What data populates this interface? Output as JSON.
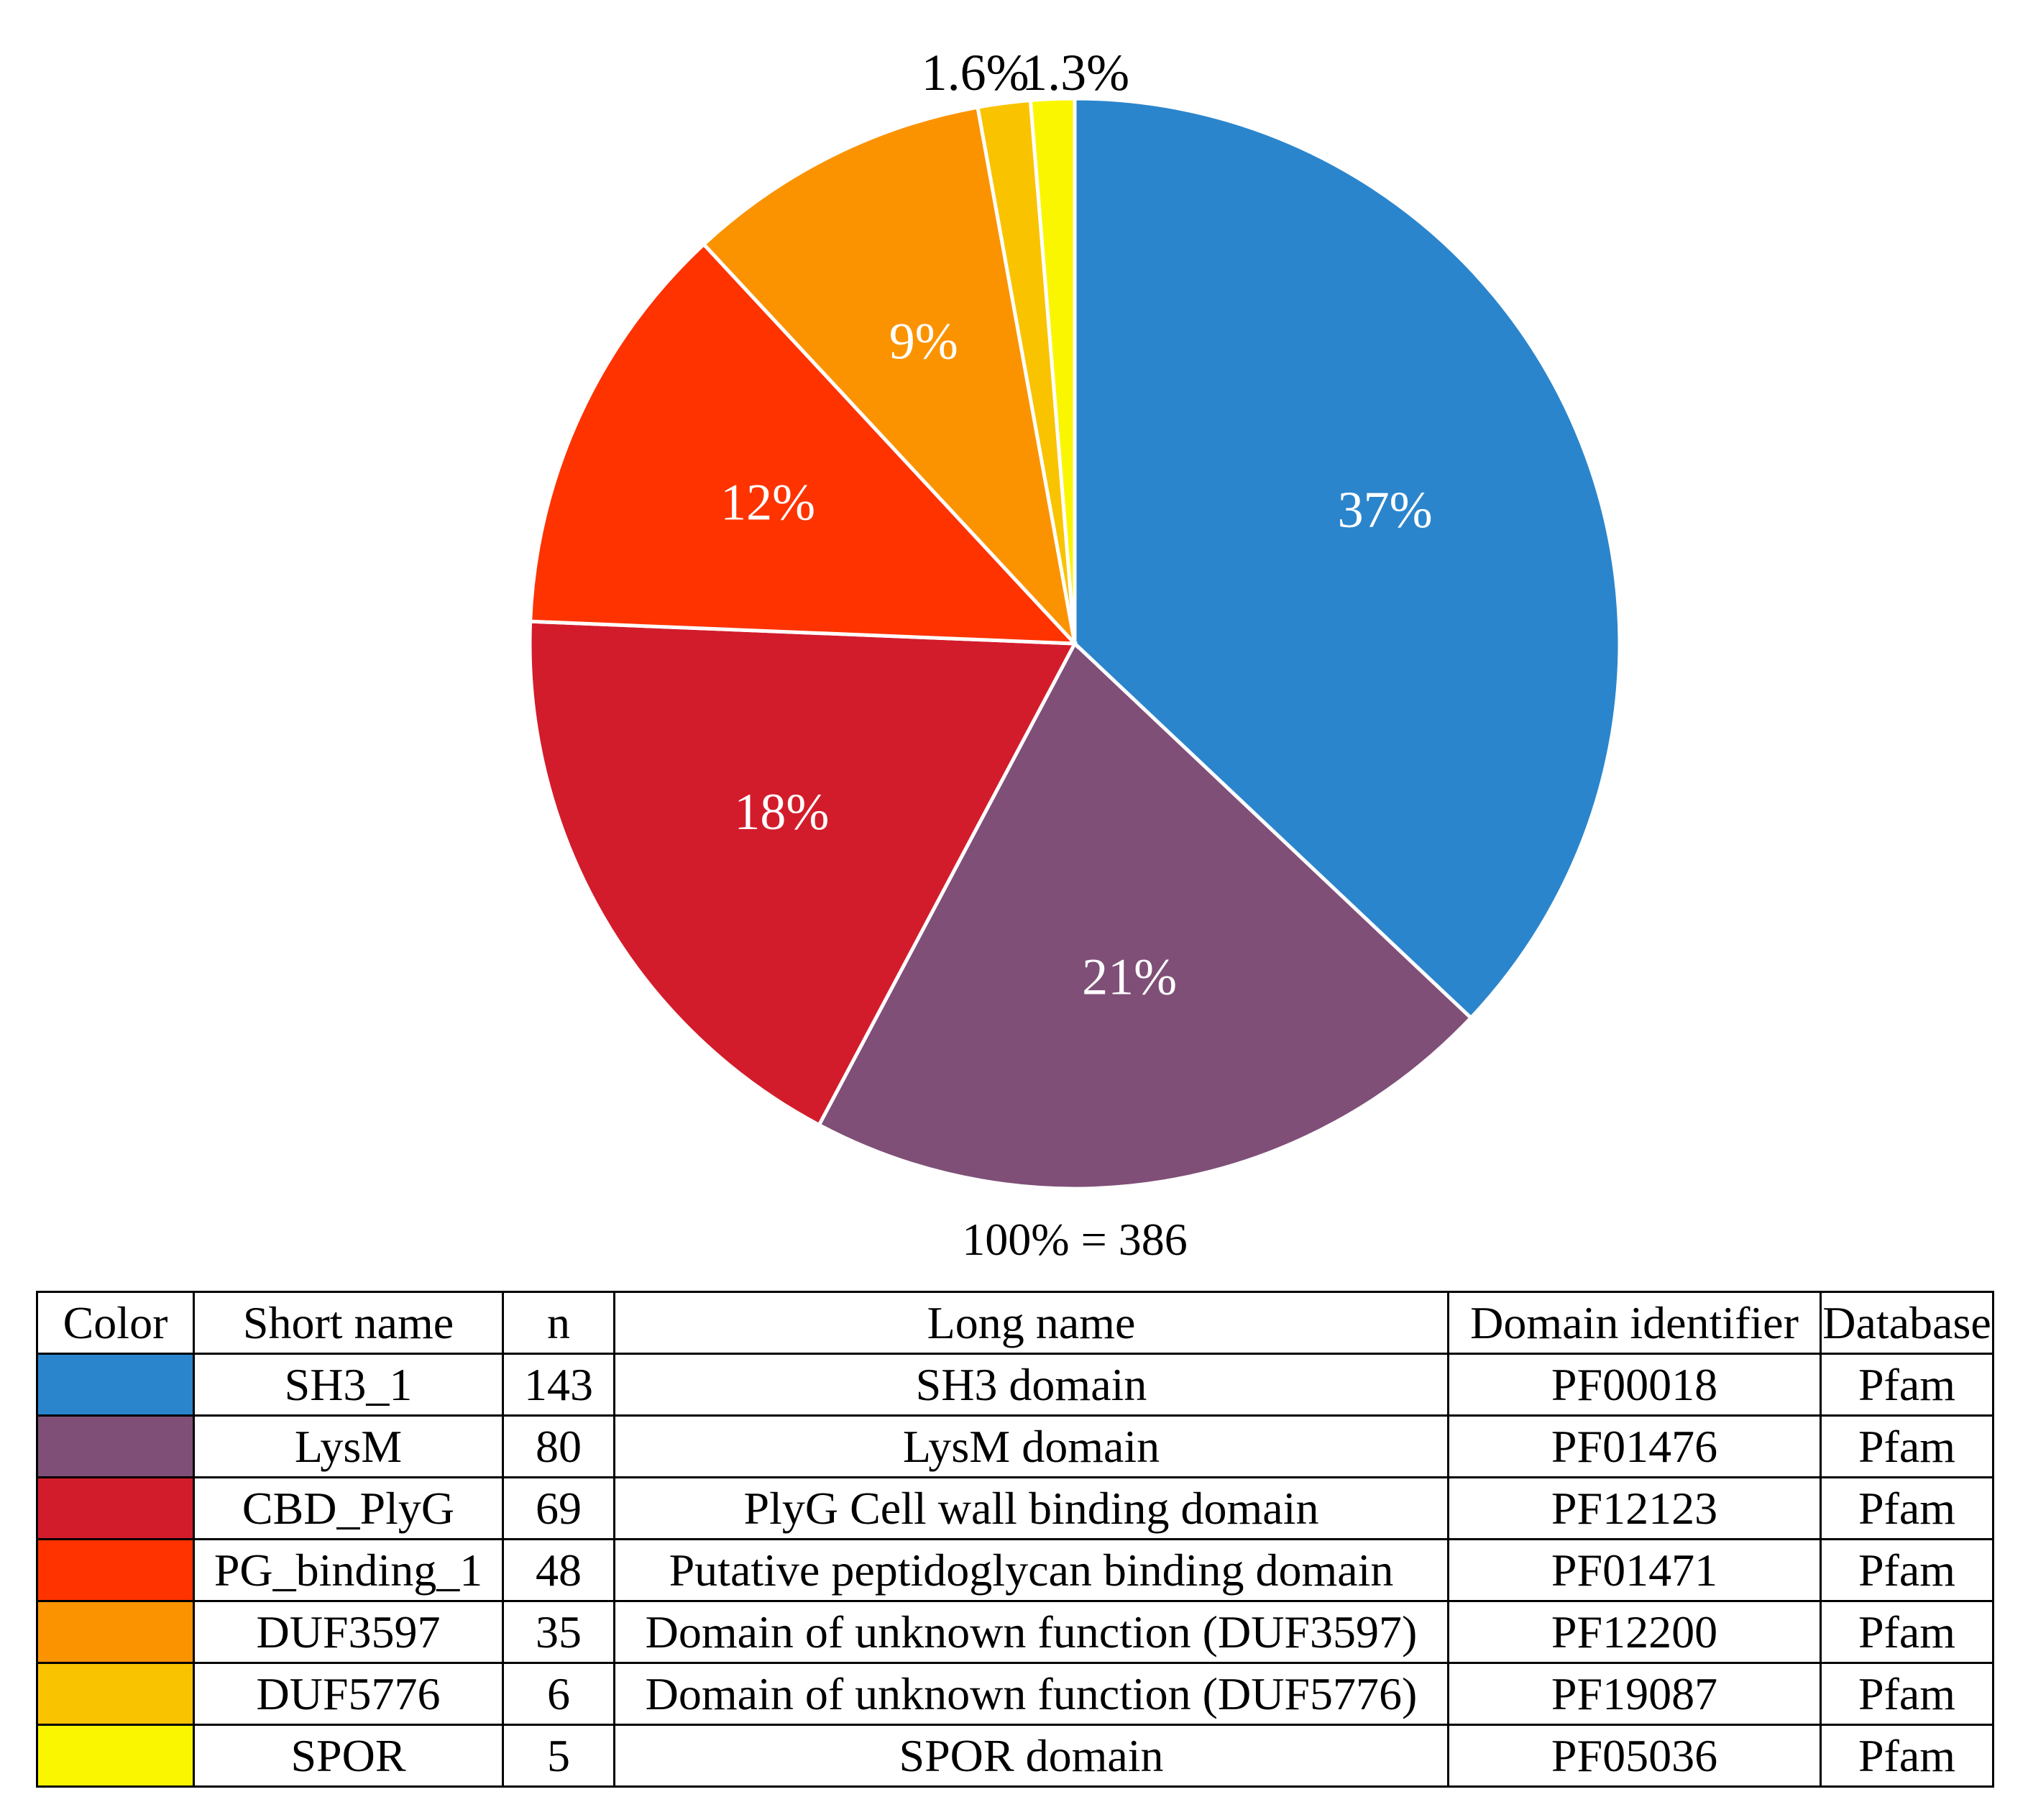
{
  "chart_data": {
    "type": "pie",
    "total_label": "100% = 386",
    "slices": [
      {
        "short_name": "SH3_1",
        "n": 143,
        "percent_label": "37%",
        "color": "#2B85CC"
      },
      {
        "short_name": "LysM",
        "n": 80,
        "percent_label": "21%",
        "color": "#7F4F77"
      },
      {
        "short_name": "CBD_PlyG",
        "n": 69,
        "percent_label": "18%",
        "color": "#D31C2B"
      },
      {
        "short_name": "PG_binding_1",
        "n": 48,
        "percent_label": "12%",
        "color": "#FE3300"
      },
      {
        "short_name": "DUF3597",
        "n": 35,
        "percent_label": "9%",
        "color": "#FB9300"
      },
      {
        "short_name": "DUF5776",
        "n": 6,
        "percent_label": "1.6%",
        "color": "#F9C300"
      },
      {
        "short_name": "SPOR",
        "n": 5,
        "percent_label": "1.3%",
        "color": "#FAF600"
      }
    ]
  },
  "legend_table": {
    "headers": [
      "Color",
      "Short name",
      "n",
      "Long name",
      "Domain identifier",
      "Database"
    ],
    "rows": [
      {
        "color": "#2B85CC",
        "short_name": "SH3_1",
        "n": "143",
        "long_name": "SH3 domain",
        "identifier": "PF00018",
        "database": "Pfam"
      },
      {
        "color": "#7F4F77",
        "short_name": "LysM",
        "n": "80",
        "long_name": "LysM domain",
        "identifier": "PF01476",
        "database": "Pfam"
      },
      {
        "color": "#D31C2B",
        "short_name": "CBD_PlyG",
        "n": "69",
        "long_name": "PlyG Cell wall binding domain",
        "identifier": "PF12123",
        "database": "Pfam"
      },
      {
        "color": "#FE3300",
        "short_name": "PG_binding_1",
        "n": "48",
        "long_name": "Putative peptidoglycan binding domain",
        "identifier": "PF01471",
        "database": "Pfam"
      },
      {
        "color": "#FB9300",
        "short_name": "DUF3597",
        "n": "35",
        "long_name": "Domain of unknown function (DUF3597)",
        "identifier": "PF12200",
        "database": "Pfam"
      },
      {
        "color": "#F9C300",
        "short_name": "DUF5776",
        "n": "6",
        "long_name": "Domain of unknown function (DUF5776)",
        "identifier": "PF19087",
        "database": "Pfam"
      },
      {
        "color": "#FAF600",
        "short_name": "SPOR",
        "n": "5",
        "long_name": "SPOR domain",
        "identifier": "PF05036",
        "database": "Pfam"
      }
    ]
  }
}
